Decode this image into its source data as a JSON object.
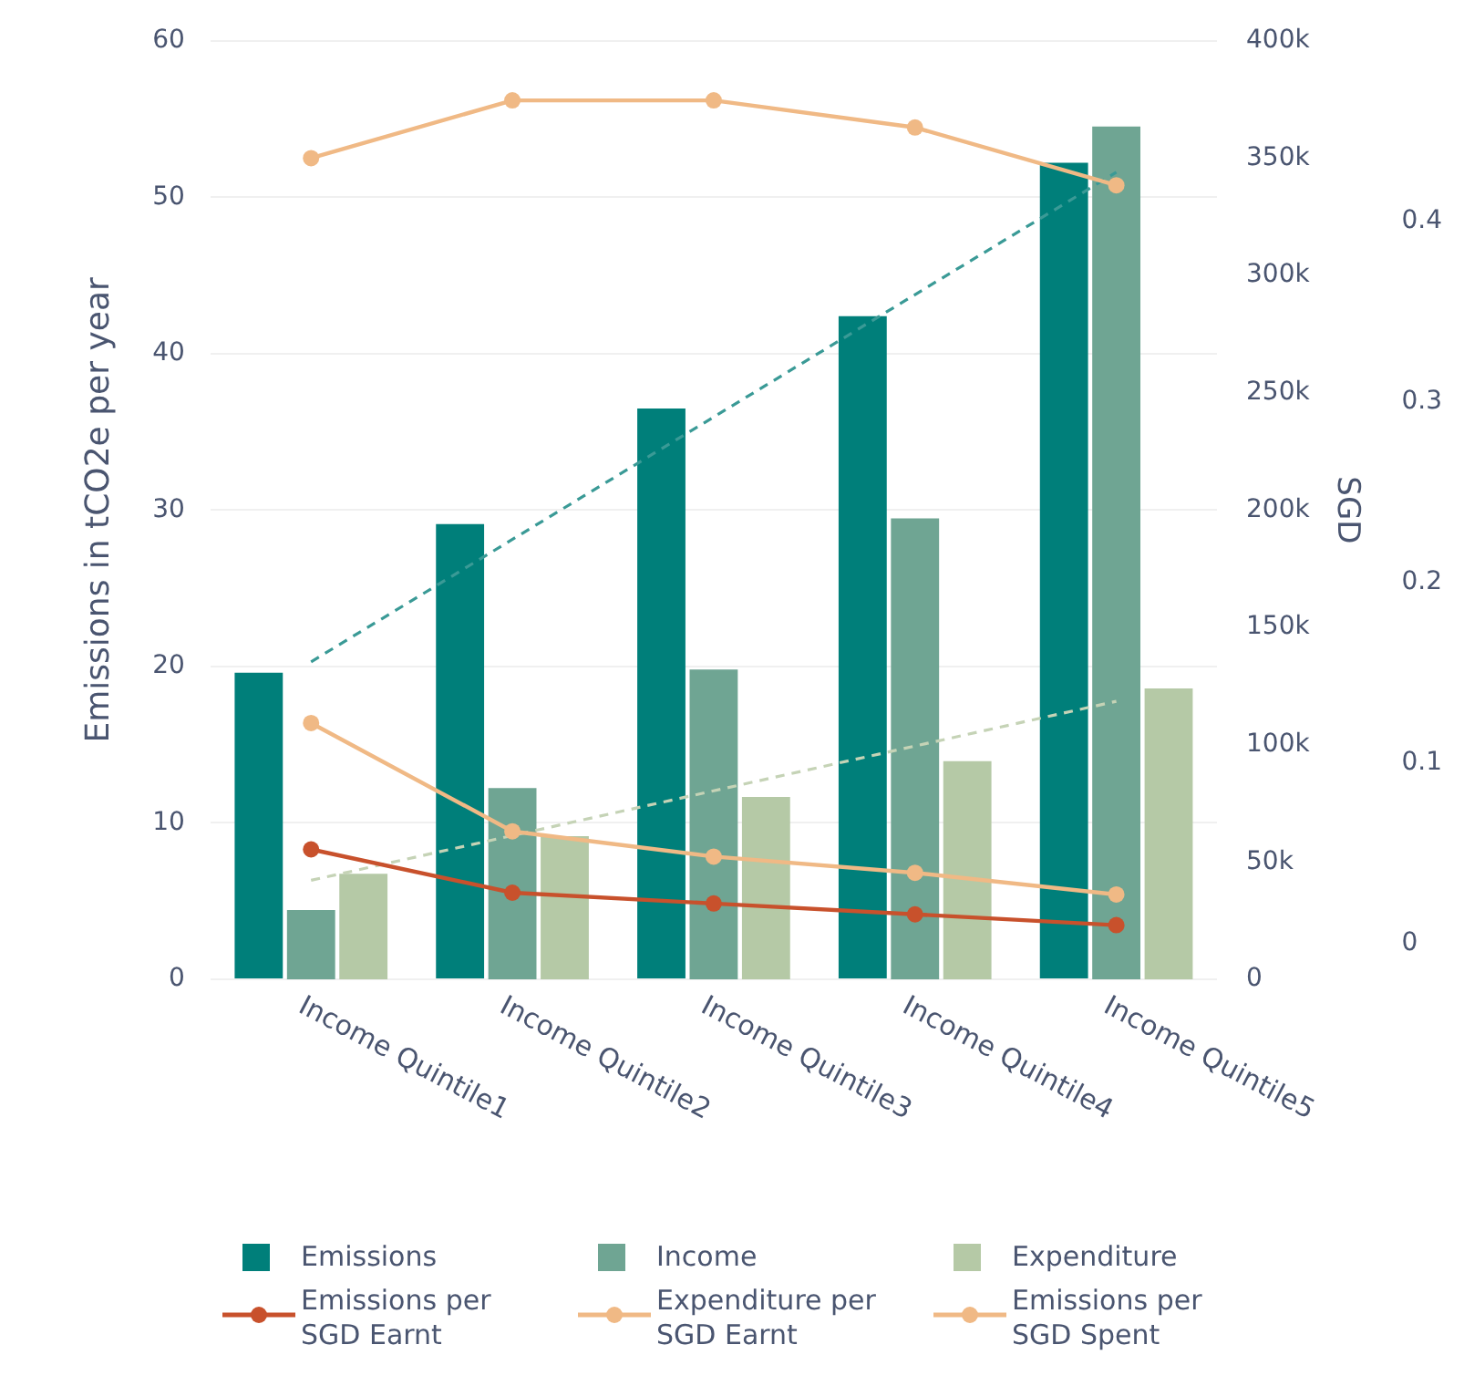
{
  "chart_data": {
    "type": "bar",
    "categories": [
      "Income Quintile1",
      "Income Quintile2",
      "Income Quintile3",
      "Income Quintile4",
      "Income Quintile5"
    ],
    "ylabel": "Emissions in tCO2e per year",
    "y2label": "SGD",
    "ylim": [
      0,
      60
    ],
    "yticks": [
      0,
      10,
      20,
      30,
      40,
      50,
      60
    ],
    "y2lim": [
      0,
      400000
    ],
    "y2ticks": [
      0,
      {
        "value": 50000,
        "label": "50k"
      },
      {
        "value": 100000,
        "label": "100k"
      },
      {
        "value": 150000,
        "label": "150k"
      },
      {
        "value": 200000,
        "label": "200k"
      },
      {
        "value": 250000,
        "label": "250k"
      },
      {
        "value": 300000,
        "label": "300k"
      },
      {
        "value": 350000,
        "label": "350k"
      },
      {
        "value": 400000,
        "label": "400k"
      }
    ],
    "y3lim": [
      -0.02,
      0.5
    ],
    "y3ticks": [
      0,
      0.1,
      0.2,
      0.3,
      0.4
    ],
    "grid": "y",
    "legend": "bottom",
    "series": [
      {
        "name": "Emissions",
        "axis": "y",
        "color": "#007f7a",
        "values": [
          19.6,
          29.1,
          36.5,
          42.4,
          52.2
        ]
      },
      {
        "name": "Income",
        "axis": "y2",
        "color": "#6fa593",
        "values": [
          29500,
          81500,
          132000,
          196500,
          363500
        ]
      },
      {
        "name": "Expenditure",
        "axis": "y2",
        "color": "#b5c9a6",
        "values": [
          45000,
          61000,
          77700,
          93000,
          124000
        ]
      },
      {
        "name": "Emissions per SGD Earnt",
        "type": "line",
        "axis": "y3",
        "color": "#c8512c",
        "marker": "circle",
        "values": [
          0.052,
          0.028,
          0.022,
          0.016,
          0.01
        ]
      },
      {
        "name": "Expenditure per SGD Earnt",
        "type": "line",
        "axis": "y3",
        "color": "#f0b985",
        "marker": "circle",
        "values": [
          0.122,
          0.062,
          0.048,
          0.039,
          0.027
        ]
      },
      {
        "name": "Emissions per SGD Spent",
        "type": "line",
        "axis": "y3",
        "color": "#f0b985",
        "marker": "circle",
        "values": [
          0.435,
          0.467,
          0.467,
          0.452,
          0.42
        ]
      },
      {
        "type": "line",
        "axis": "y",
        "color": "#3a9a96",
        "line_style": "dashed",
        "marker": "none",
        "x": [
          "Income Quintile1",
          "Income Quintile5"
        ],
        "values": [
          20.3,
          51.6
        ]
      },
      {
        "type": "line",
        "axis": "y2",
        "color": "#c5d3b6",
        "line_style": "dashed",
        "marker": "none",
        "x": [
          "Income Quintile1",
          "Income Quintile5"
        ],
        "values": [
          42200,
          118500
        ]
      }
    ]
  }
}
